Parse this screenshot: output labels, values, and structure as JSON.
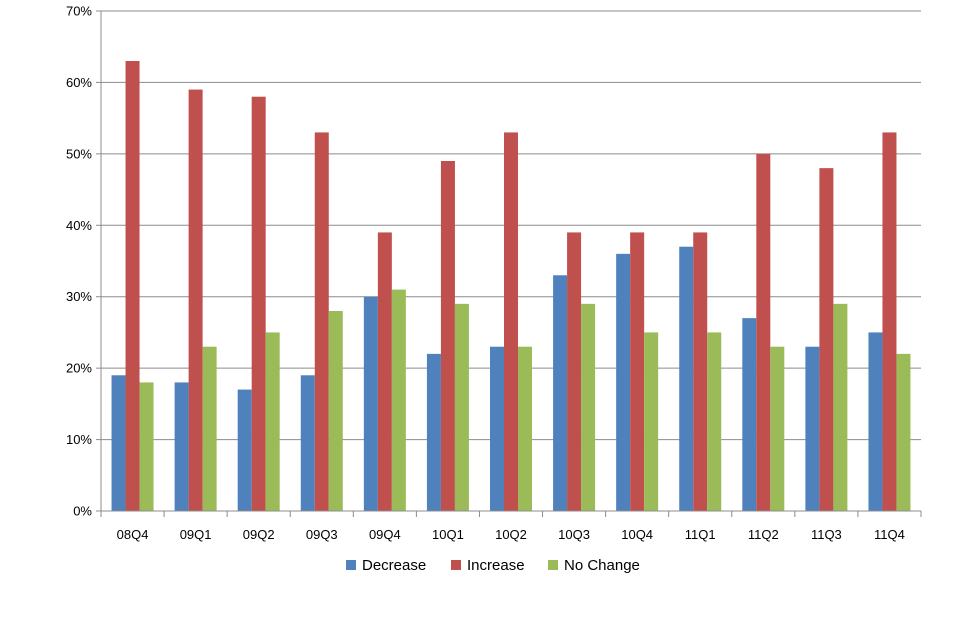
{
  "chart_data": {
    "type": "bar",
    "categories": [
      "08Q4",
      "09Q1",
      "09Q2",
      "09Q3",
      "09Q4",
      "10Q1",
      "10Q2",
      "10Q3",
      "10Q4",
      "11Q1",
      "11Q2",
      "11Q3",
      "11Q4"
    ],
    "series": [
      {
        "name": "Decrease",
        "color": "#4f81bd",
        "values": [
          19,
          18,
          17,
          19,
          30,
          22,
          23,
          33,
          36,
          37,
          27,
          23,
          25
        ]
      },
      {
        "name": "Increase",
        "color": "#c0504d",
        "values": [
          63,
          59,
          58,
          53,
          39,
          49,
          53,
          39,
          39,
          39,
          50,
          48,
          53
        ]
      },
      {
        "name": "No Change",
        "color": "#9bbb59",
        "values": [
          18,
          23,
          25,
          28,
          31,
          29,
          23,
          29,
          25,
          25,
          23,
          29,
          22
        ]
      }
    ],
    "y_ticks": [
      "0%",
      "10%",
      "20%",
      "30%",
      "40%",
      "50%",
      "60%",
      "70%"
    ],
    "ylim": [
      0,
      70
    ],
    "grid": true,
    "legend": "bottom"
  }
}
